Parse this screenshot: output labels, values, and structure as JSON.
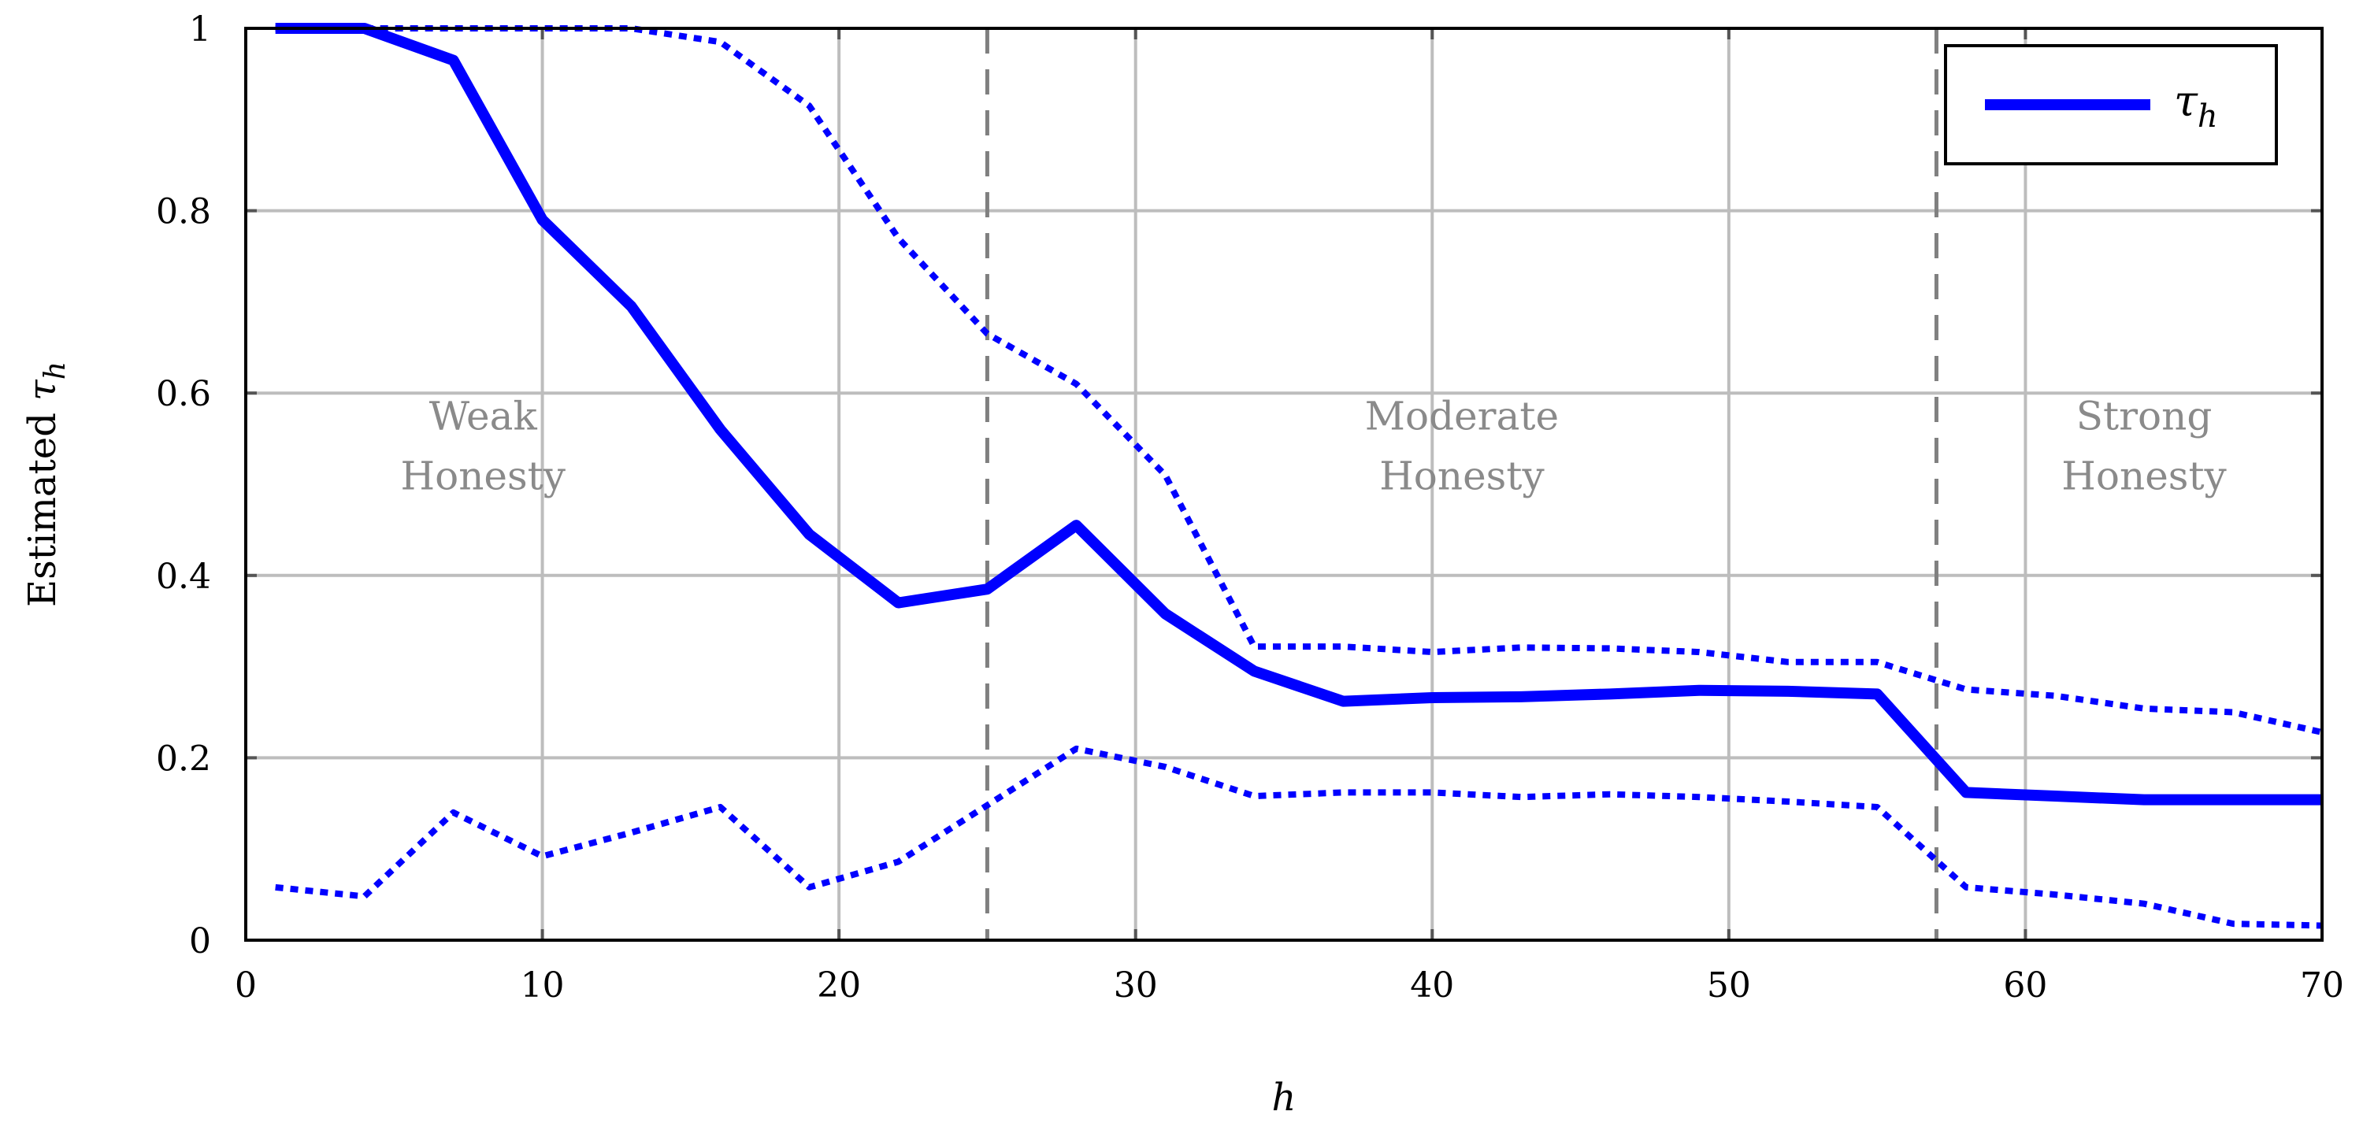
{
  "chart_data": {
    "type": "line",
    "xlabel": "h",
    "ylabel_prefix": "Estimated ",
    "ylabel_symbol": "τ",
    "ylabel_subscript": "h",
    "xlim": [
      0,
      70
    ],
    "ylim": [
      0,
      1
    ],
    "xticks": [
      0,
      10,
      20,
      30,
      40,
      50,
      60,
      70
    ],
    "yticks": [
      0,
      0.2,
      0.4,
      0.6,
      0.8,
      1
    ],
    "ytick_labels": [
      "0",
      "0.2",
      "0.4",
      "0.6",
      "0.8",
      "1"
    ],
    "grid": true,
    "legend": {
      "position": "top-right",
      "symbol": "τ",
      "subscript": "h"
    },
    "color": "#0000ff",
    "vlines": [
      25,
      57
    ],
    "regions": [
      {
        "line1": "Weak",
        "line2": "Honesty",
        "x": 8,
        "y": 0.56
      },
      {
        "line1": "Moderate",
        "line2": "Honesty",
        "x": 41,
        "y": 0.56
      },
      {
        "line1": "Strong",
        "line2": "Honesty",
        "x": 64,
        "y": 0.56
      }
    ],
    "series": [
      {
        "name": "τh",
        "style": "solid",
        "x": [
          1,
          4,
          7,
          10,
          13,
          16,
          19,
          22,
          25,
          28,
          31,
          34,
          37,
          40,
          43,
          46,
          49,
          52,
          55,
          58,
          61,
          64,
          67,
          70
        ],
        "values": [
          1.0,
          1.0,
          0.965,
          0.79,
          0.695,
          0.56,
          0.445,
          0.37,
          0.385,
          0.455,
          0.358,
          0.295,
          0.262,
          0.266,
          0.267,
          0.27,
          0.274,
          0.273,
          0.27,
          0.162,
          0.158,
          0.154,
          0.154,
          0.154
        ]
      },
      {
        "style": "dotted",
        "x": [
          1,
          4,
          7,
          10,
          13,
          16,
          19,
          22,
          25,
          28,
          31,
          34,
          37,
          40,
          43,
          46,
          49,
          52,
          55,
          58,
          61,
          64,
          67,
          70
        ],
        "values": [
          1.0,
          1.0,
          1.0,
          1.0,
          1.0,
          0.985,
          0.915,
          0.77,
          0.665,
          0.61,
          0.51,
          0.322,
          0.322,
          0.316,
          0.321,
          0.32,
          0.316,
          0.305,
          0.305,
          0.275,
          0.268,
          0.254,
          0.25,
          0.228
        ]
      },
      {
        "style": "dotted",
        "x": [
          1,
          4,
          7,
          10,
          13,
          16,
          19,
          22,
          25,
          28,
          31,
          34,
          37,
          40,
          43,
          46,
          49,
          52,
          55,
          58,
          61,
          64,
          67,
          70
        ],
        "values": [
          0.058,
          0.048,
          0.14,
          0.092,
          0.118,
          0.146,
          0.058,
          0.086,
          0.148,
          0.21,
          0.19,
          0.158,
          0.162,
          0.162,
          0.157,
          0.16,
          0.157,
          0.152,
          0.146,
          0.058,
          0.05,
          0.04,
          0.018,
          0.016
        ]
      }
    ]
  }
}
